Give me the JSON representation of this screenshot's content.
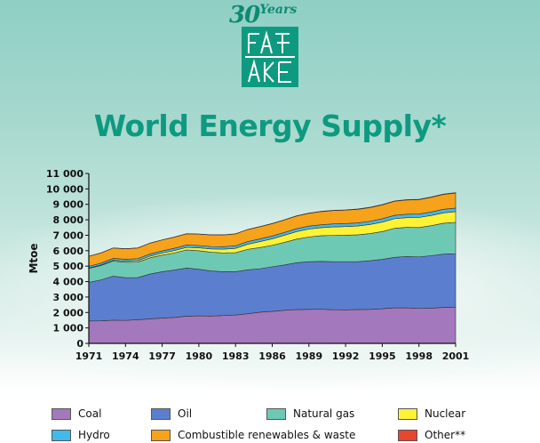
{
  "logo": {
    "years_number": "30",
    "years_text": "Years"
  },
  "chart_data": {
    "type": "area",
    "stacked": true,
    "title": "World Energy Supply*",
    "xlabel": "",
    "ylabel": "Mtoe",
    "xlim": [
      1971,
      2001
    ],
    "ylim": [
      0,
      11000
    ],
    "x_ticks": [
      1971,
      1974,
      1977,
      1980,
      1983,
      1986,
      1989,
      1992,
      1995,
      1998,
      2001
    ],
    "x_tick_labels": [
      "1971",
      "1974",
      "1977",
      "1980",
      "1983",
      "1986",
      "1989",
      "1992",
      "1995",
      "1998",
      "2001"
    ],
    "y_ticks": [
      0,
      1000,
      2000,
      3000,
      4000,
      5000,
      6000,
      7000,
      8000,
      9000,
      10000,
      11000
    ],
    "y_tick_labels": [
      "0",
      "1 000",
      "2 000",
      "3 000",
      "4 000",
      "5 000",
      "6 000",
      "7 000",
      "8 000",
      "9 000",
      "10 000",
      "11 000"
    ],
    "grid": false,
    "legend_position": "bottom",
    "x": [
      1971,
      1972,
      1973,
      1974,
      1975,
      1976,
      1977,
      1978,
      1979,
      1980,
      1981,
      1982,
      1983,
      1984,
      1985,
      1986,
      1987,
      1988,
      1989,
      1990,
      1991,
      1992,
      1993,
      1994,
      1995,
      1996,
      1997,
      1998,
      1999,
      2000,
      2001
    ],
    "series": [
      {
        "name": "Coal",
        "color": "#a478bc",
        "values": [
          1450,
          1460,
          1500,
          1490,
          1530,
          1590,
          1640,
          1680,
          1760,
          1780,
          1770,
          1800,
          1840,
          1920,
          2020,
          2070,
          2140,
          2190,
          2200,
          2210,
          2180,
          2170,
          2190,
          2200,
          2240,
          2300,
          2300,
          2260,
          2280,
          2330,
          2350
        ]
      },
      {
        "name": "Oil",
        "color": "#5b7fce",
        "values": [
          2500,
          2650,
          2850,
          2760,
          2730,
          2900,
          3000,
          3070,
          3120,
          3020,
          2920,
          2840,
          2800,
          2840,
          2810,
          2890,
          2940,
          3030,
          3090,
          3100,
          3110,
          3120,
          3100,
          3150,
          3200,
          3270,
          3330,
          3340,
          3400,
          3450,
          3460
        ]
      },
      {
        "name": "Natural gas",
        "color": "#6ec9b4",
        "values": [
          900,
          930,
          980,
          1000,
          1000,
          1050,
          1070,
          1110,
          1170,
          1200,
          1210,
          1220,
          1230,
          1330,
          1370,
          1390,
          1460,
          1530,
          1600,
          1660,
          1700,
          1710,
          1740,
          1760,
          1800,
          1880,
          1880,
          1900,
          1940,
          2000,
          2030
        ]
      },
      {
        "name": "Nuclear",
        "color": "#fff235",
        "values": [
          30,
          40,
          55,
          70,
          95,
          110,
          135,
          155,
          165,
          185,
          215,
          240,
          280,
          330,
          390,
          420,
          460,
          490,
          510,
          520,
          550,
          560,
          570,
          590,
          610,
          620,
          630,
          650,
          660,
          670,
          690
        ]
      },
      {
        "name": "Hydro",
        "color": "#41b9ea",
        "values": [
          110,
          115,
          120,
          125,
          130,
          135,
          140,
          145,
          150,
          150,
          155,
          160,
          165,
          170,
          175,
          180,
          180,
          185,
          190,
          190,
          195,
          195,
          200,
          205,
          215,
          220,
          220,
          225,
          225,
          230,
          230
        ]
      },
      {
        "name": "Combustible renewables & waste",
        "color": "#f7a21b",
        "values": [
          650,
          660,
          670,
          680,
          690,
          700,
          710,
          720,
          730,
          740,
          750,
          760,
          770,
          780,
          790,
          800,
          810,
          820,
          830,
          850,
          860,
          870,
          880,
          890,
          900,
          910,
          920,
          930,
          950,
          960,
          970
        ]
      },
      {
        "name": "Other**",
        "color": "#e8462e",
        "values": [
          4,
          4,
          5,
          5,
          5,
          6,
          6,
          7,
          7,
          8,
          8,
          9,
          9,
          10,
          11,
          12,
          13,
          14,
          15,
          16,
          17,
          18,
          19,
          20,
          21,
          22,
          23,
          24,
          25,
          26,
          27
        ]
      }
    ]
  }
}
